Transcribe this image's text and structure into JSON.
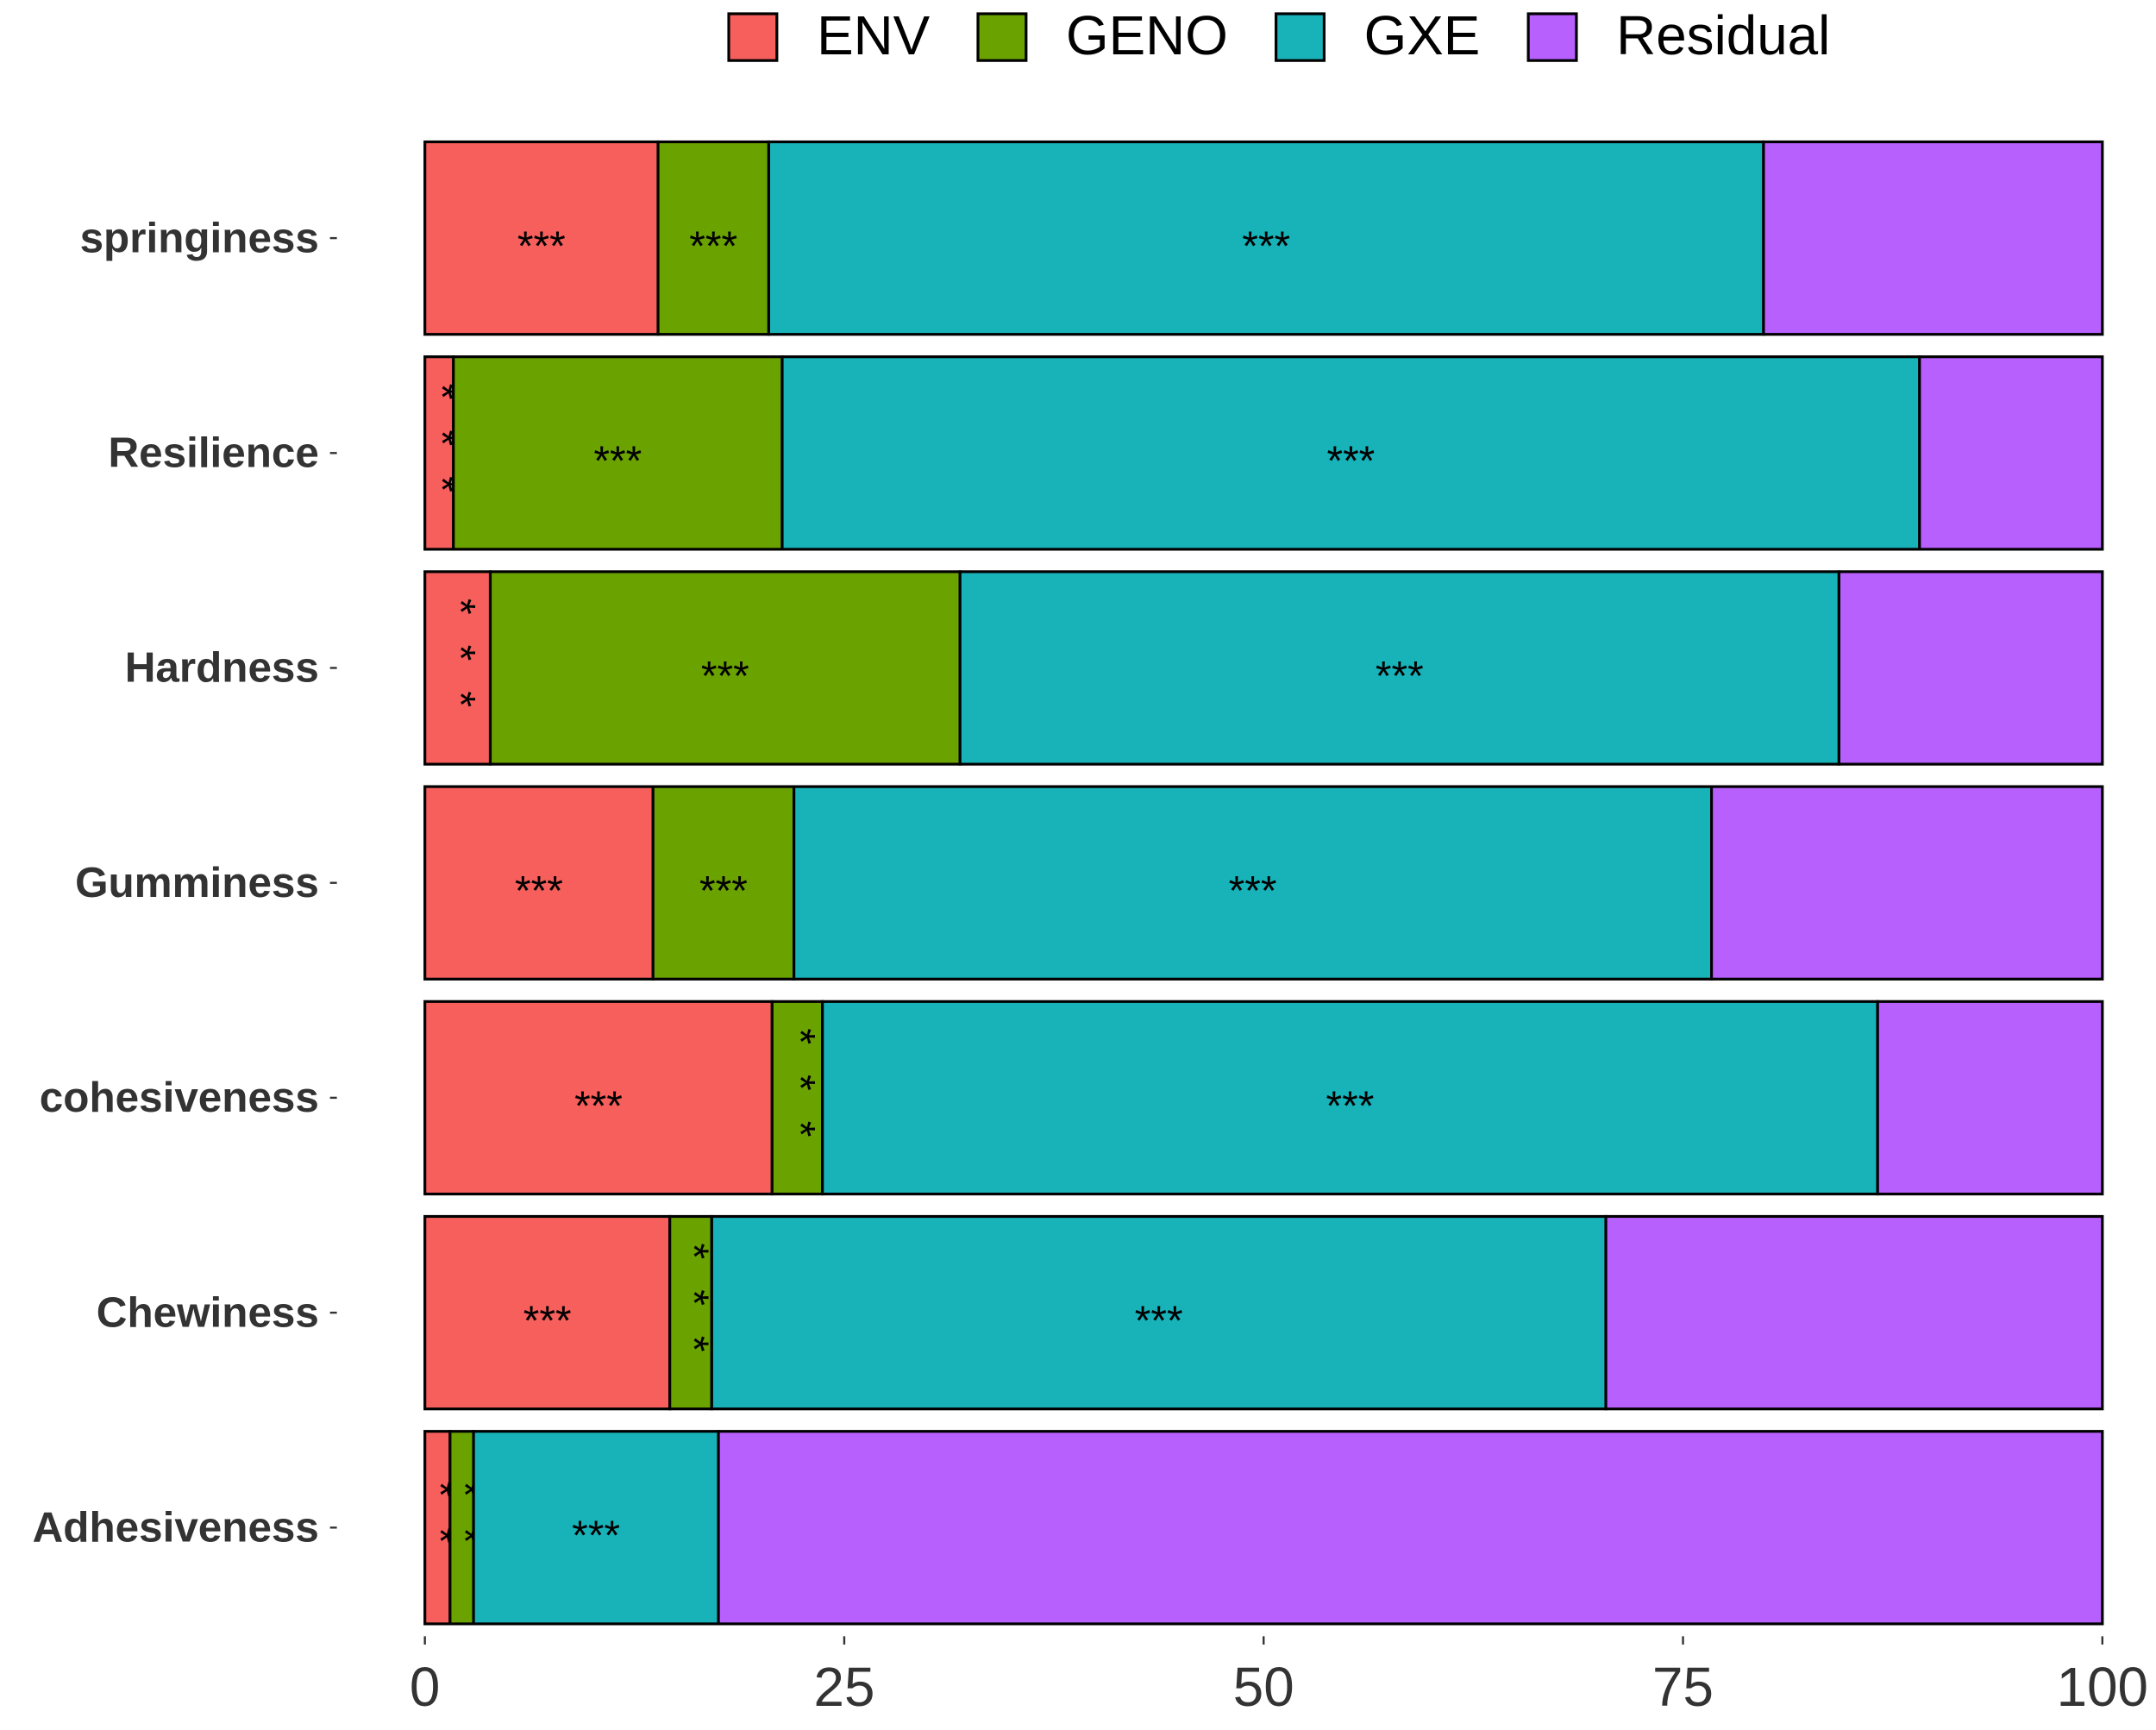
{
  "chart_data": {
    "type": "stacked_bar_horizontal",
    "categories": [
      "springiness",
      "Resilience",
      "Hardness",
      "Gumminess",
      "cohesiveness",
      "Chewiness",
      "Adhesiveness"
    ],
    "series": [
      {
        "name": "ENV",
        "color": "#f65f5c",
        "values": [
          13.9,
          1.7,
          3.9,
          13.6,
          20.7,
          14.6,
          1.5
        ],
        "significance": [
          "***",
          "***",
          "***",
          "***",
          "***",
          "***",
          "**"
        ]
      },
      {
        "name": "GENO",
        "color": "#6aa200",
        "values": [
          6.6,
          19.6,
          28.0,
          8.4,
          3.0,
          2.5,
          1.4
        ],
        "significance": [
          "***",
          "***",
          "***",
          "***",
          "***",
          "***",
          "**"
        ]
      },
      {
        "name": "GXE",
        "color": "#17b3b9",
        "values": [
          59.3,
          67.8,
          52.4,
          54.7,
          62.9,
          53.3,
          14.6
        ],
        "significance": [
          "***",
          "***",
          "***",
          "***",
          "***",
          "***",
          "***"
        ]
      },
      {
        "name": "Residual",
        "color": "#b760fe",
        "values": [
          20.2,
          10.9,
          15.7,
          23.3,
          13.4,
          29.6,
          82.5
        ]
      }
    ],
    "xlim": [
      0,
      100
    ],
    "xticks": [
      0,
      25,
      50,
      75,
      100
    ],
    "legend": "top"
  }
}
